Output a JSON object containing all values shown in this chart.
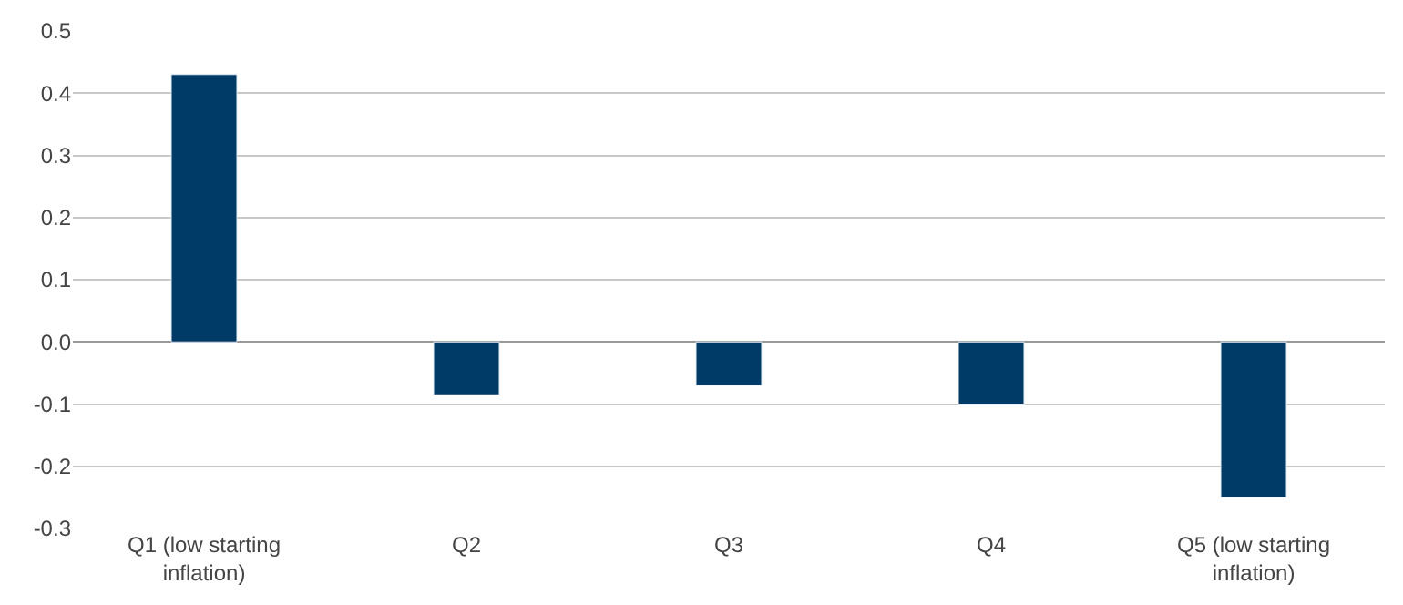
{
  "chart_data": {
    "type": "bar",
    "categories": [
      "Q1 (low starting inflation)",
      "Q2",
      "Q3",
      "Q4",
      "Q5 (low starting inflation)"
    ],
    "values": [
      0.43,
      -0.085,
      -0.07,
      -0.1,
      -0.25
    ],
    "color": "#003a66",
    "ylim": [
      -0.3,
      0.5
    ],
    "yticks": [
      {
        "value": -0.3,
        "label": "-0.3"
      },
      {
        "value": -0.2,
        "label": "-0.2"
      },
      {
        "value": -0.1,
        "label": "-0.1"
      },
      {
        "value": 0.0,
        "label": "0.0"
      },
      {
        "value": 0.1,
        "label": "0.1"
      },
      {
        "value": 0.2,
        "label": "0.2"
      },
      {
        "value": 0.3,
        "label": "0.3"
      },
      {
        "value": 0.4,
        "label": "0.4"
      },
      {
        "value": 0.5,
        "label": "0.5"
      }
    ],
    "grid": "y"
  }
}
